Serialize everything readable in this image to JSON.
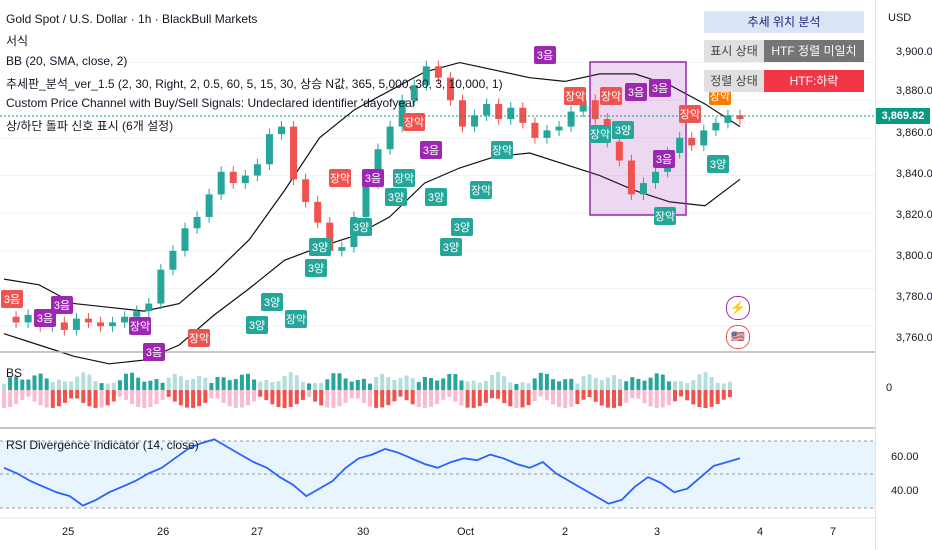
{
  "header": {
    "title": "Gold Spot / U.S. Dollar · 1h · BlackBull Markets",
    "row2": "서식",
    "bb": "BB (20, SMA, close, 2)",
    "custom_indicator": "추세판_분석_ver_1.5 (2, 30, Right, 2, 0.5, 60, 5, 15, 30, 상승 N값, 365, 5,000, 30, 3, 10,000, 1)",
    "price_channel": "Custom Price Channel with Buy/Sell Signals: Undeclared identifier 'dayofyear'",
    "sixth": "상/하단 돌파 신호 표시 (6개 설정)"
  },
  "price_axis": {
    "currency": "USD",
    "labels": [
      "3,900.00",
      "3,880.00",
      "3,860.00",
      "3,840.00",
      "3,820.00",
      "3,800.00",
      "3,780.00",
      "3,760.00"
    ],
    "current": "3,869.82"
  },
  "time_axis": {
    "labels": [
      "25",
      "26",
      "27",
      "30",
      "Oct",
      "2",
      "3",
      "3",
      "4",
      "7"
    ]
  },
  "trend_table": {
    "title": "추세 위치 분석",
    "row1_label": "표시 상태",
    "row1_value": "HTF 정렬 미일치",
    "row2_label": "정렬 상태",
    "row2_value": "HTF:하락"
  },
  "panels": {
    "bs_label": "BS",
    "bs_zero": "0",
    "rsi_label": "RSI Divergence Indicator (14, close)",
    "rsi_labels": [
      "60.00",
      "40.00"
    ]
  },
  "colors": {
    "up": "#26a69a",
    "down": "#ef5350",
    "box": "#9c27b0",
    "price_line": "#089981"
  },
  "chart_data": [
    {
      "type": "candlestick",
      "title": "Gold Spot / U.S. Dollar · 1h · BlackBull Markets",
      "ylim": [
        3750,
        3912
      ],
      "x": [
        "25",
        "26",
        "27",
        "30",
        "Oct",
        "2",
        "3",
        "4",
        "7"
      ],
      "close_path": [
        3765,
        3762,
        3766,
        3760,
        3762,
        3758,
        3764,
        3762,
        3760,
        3762,
        3765,
        3768,
        3772,
        3790,
        3800,
        3812,
        3818,
        3830,
        3842,
        3836,
        3840,
        3846,
        3862,
        3866,
        3838,
        3826,
        3815,
        3800,
        3802,
        3818,
        3836,
        3854,
        3866,
        3880,
        3888,
        3898,
        3892,
        3880,
        3866,
        3872,
        3878,
        3870,
        3876,
        3868,
        3860,
        3864,
        3866,
        3874,
        3880,
        3870,
        3858,
        3848,
        3830,
        3836,
        3842,
        3852,
        3860,
        3856,
        3864,
        3868,
        3872,
        3870
      ],
      "bb_upper": [
        3785,
        3782,
        3772,
        3770,
        3768,
        3772,
        3788,
        3806,
        3832,
        3860,
        3875,
        3885,
        3895,
        3900,
        3896,
        3892,
        3890,
        3894,
        3894,
        3888,
        3878,
        3866
      ],
      "bb_lower": [
        3756,
        3750,
        3744,
        3740,
        3742,
        3750,
        3766,
        3780,
        3795,
        3802,
        3808,
        3818,
        3836,
        3844,
        3850,
        3852,
        3846,
        3840,
        3832,
        3826,
        3824,
        3838
      ],
      "current_price": 3869.82
    },
    {
      "type": "bar",
      "title": "BS",
      "values_note": "histogram oscillating around 0"
    },
    {
      "type": "line",
      "title": "RSI Divergence Indicator (14, close)",
      "ylim": [
        30,
        75
      ],
      "values": [
        55,
        52,
        48,
        45,
        42,
        40,
        35,
        38,
        42,
        45,
        48,
        52,
        55,
        60,
        65,
        68,
        70,
        66,
        62,
        58,
        55,
        50,
        46,
        40,
        44,
        48,
        55,
        60,
        62,
        65,
        63,
        60,
        57,
        55,
        58,
        60,
        59,
        62,
        60,
        57,
        55,
        58,
        52,
        48,
        44,
        40,
        36,
        38,
        45,
        50,
        47,
        42,
        44,
        50,
        56,
        58,
        60
      ]
    }
  ]
}
